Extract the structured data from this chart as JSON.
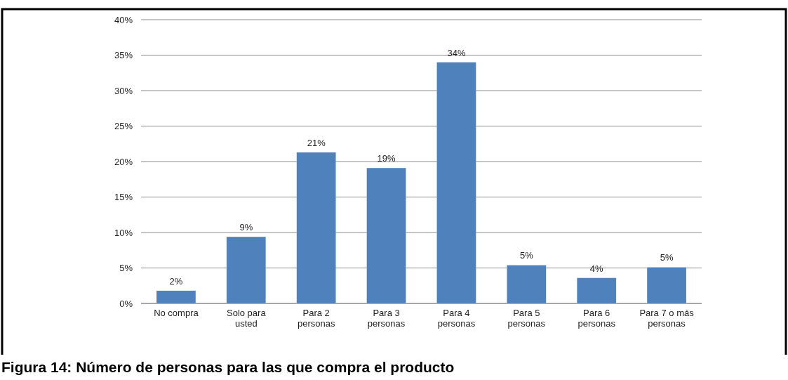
{
  "chart_data": {
    "type": "bar",
    "title": "Figura 14: Número de personas para las que compra el producto",
    "categories": [
      "No compra",
      "Solo para usted",
      "Para 2 personas",
      "Para 3 personas",
      "Para 4 personas",
      "Para 5 personas",
      "Para 6 personas",
      "Para 7 o más personas"
    ],
    "values": [
      1.8,
      9.4,
      21.3,
      19.1,
      34.0,
      5.4,
      3.6,
      5.1
    ],
    "value_labels": [
      "2%",
      "9%",
      "21%",
      "19%",
      "34%",
      "5%",
      "4%",
      "5%"
    ],
    "color": "#4f81bd",
    "ylim": [
      0,
      40
    ],
    "yticks": [
      {
        "value": 0,
        "label": "0%"
      },
      {
        "value": 5,
        "label": "5%"
      },
      {
        "value": 10,
        "label": "10%"
      },
      {
        "value": 15,
        "label": "15%"
      },
      {
        "value": 20,
        "label": "20%"
      },
      {
        "value": 25,
        "label": "25%"
      },
      {
        "value": 30,
        "label": "30%"
      },
      {
        "value": 35,
        "label": "35%"
      },
      {
        "value": 40,
        "label": "40%"
      }
    ],
    "grid": "y"
  }
}
